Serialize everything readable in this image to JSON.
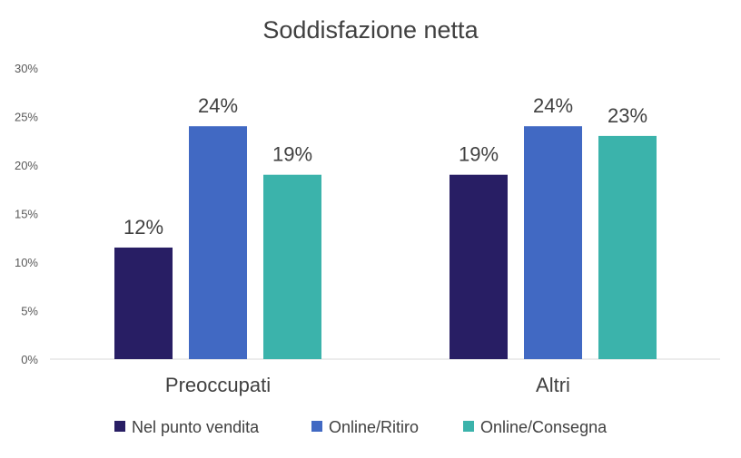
{
  "chart_data": {
    "type": "bar",
    "title": "Soddisfazione netta",
    "xlabel": "",
    "ylabel": "",
    "categories": [
      "Preoccupati",
      "Altri"
    ],
    "ylim": [
      0,
      30
    ],
    "yticks": [
      "0%",
      "5%",
      "10%",
      "15%",
      "20%",
      "25%",
      "30%"
    ],
    "grid": false,
    "legend_position": "bottom",
    "series": [
      {
        "name": "Nel punto vendita",
        "color": "#281e64",
        "values": [
          11.5,
          19
        ],
        "labels": [
          "12%",
          "19%"
        ]
      },
      {
        "name": "Online/Ritiro",
        "color": "#4169c3",
        "values": [
          24,
          24
        ],
        "labels": [
          "24%",
          "24%"
        ]
      },
      {
        "name": "Online/Consegna",
        "color": "#3bb3ab",
        "values": [
          19,
          23
        ],
        "labels": [
          "19%",
          "23%"
        ]
      }
    ]
  }
}
